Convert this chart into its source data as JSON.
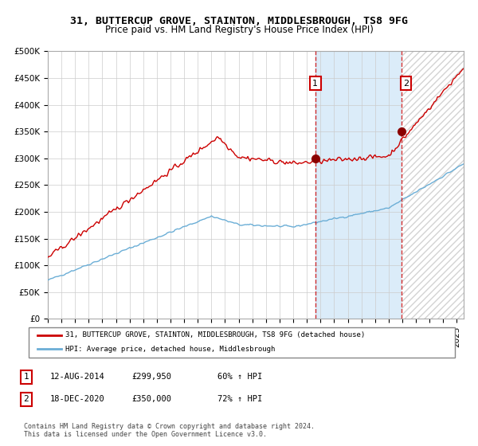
{
  "title": "31, BUTTERCUP GROVE, STAINTON, MIDDLESBROUGH, TS8 9FG",
  "subtitle": "Price paid vs. HM Land Registry's House Price Index (HPI)",
  "red_label": "31, BUTTERCUP GROVE, STAINTON, MIDDLESBROUGH, TS8 9FG (detached house)",
  "blue_label": "HPI: Average price, detached house, Middlesbrough",
  "annotation1_date": "12-AUG-2014",
  "annotation1_price": "£299,950",
  "annotation1_pct": "60% ↑ HPI",
  "annotation2_date": "18-DEC-2020",
  "annotation2_price": "£350,000",
  "annotation2_pct": "72% ↑ HPI",
  "footnote": "Contains HM Land Registry data © Crown copyright and database right 2024.\nThis data is licensed under the Open Government Licence v3.0.",
  "ylim": [
    0,
    500000
  ],
  "yticks": [
    0,
    50000,
    100000,
    150000,
    200000,
    250000,
    300000,
    350000,
    400000,
    450000,
    500000
  ],
  "sale1_x": 2014.617,
  "sale1_y": 299950,
  "sale2_x": 2020.961,
  "sale2_y": 350000,
  "xmin": 1995.0,
  "xmax": 2025.5
}
